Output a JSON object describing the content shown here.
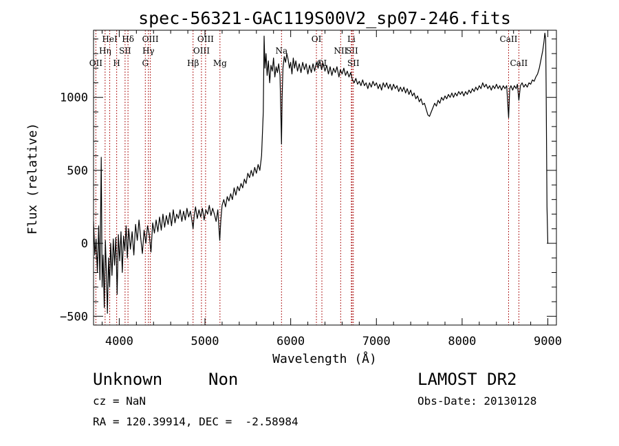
{
  "chart_data": {
    "type": "line",
    "title": "spec-56321-GAC119S00V2_sp07-246.fits",
    "xlabel": "Wavelength (Å)",
    "ylabel": "Flux (relative)",
    "xlim": [
      3700,
      9100
    ],
    "ylim": [
      -560,
      1460
    ],
    "grid": false,
    "x_ticks": [
      4000,
      5000,
      6000,
      7000,
      8000,
      9000
    ],
    "y_ticks": [
      -500,
      0,
      500,
      1000
    ],
    "line_color": "#000000",
    "marker_color": "#b22222",
    "series": [
      {
        "points": [
          [
            3700,
            150
          ],
          [
            3715,
            -80
          ],
          [
            3730,
            30
          ],
          [
            3745,
            -200
          ],
          [
            3760,
            120
          ],
          [
            3775,
            -250
          ],
          [
            3790,
            590
          ],
          [
            3800,
            -300
          ],
          [
            3812,
            -80
          ],
          [
            3825,
            -440
          ],
          [
            3838,
            20
          ],
          [
            3850,
            -200
          ],
          [
            3862,
            -480
          ],
          [
            3875,
            -100
          ],
          [
            3888,
            -300
          ],
          [
            3900,
            0
          ],
          [
            3915,
            -220
          ],
          [
            3930,
            30
          ],
          [
            3945,
            -150
          ],
          [
            3960,
            40
          ],
          [
            3975,
            -350
          ],
          [
            3990,
            60
          ],
          [
            4005,
            -120
          ],
          [
            4020,
            80
          ],
          [
            4035,
            -200
          ],
          [
            4050,
            50
          ],
          [
            4065,
            -50
          ],
          [
            4080,
            120
          ],
          [
            4095,
            -100
          ],
          [
            4110,
            100
          ],
          [
            4130,
            -40
          ],
          [
            4150,
            80
          ],
          [
            4170,
            -80
          ],
          [
            4190,
            130
          ],
          [
            4210,
            20
          ],
          [
            4230,
            160
          ],
          [
            4250,
            40
          ],
          [
            4270,
            -70
          ],
          [
            4290,
            90
          ],
          [
            4310,
            0
          ],
          [
            4330,
            120
          ],
          [
            4350,
            60
          ],
          [
            4370,
            -60
          ],
          [
            4390,
            140
          ],
          [
            4410,
            70
          ],
          [
            4430,
            160
          ],
          [
            4450,
            80
          ],
          [
            4470,
            180
          ],
          [
            4490,
            90
          ],
          [
            4510,
            200
          ],
          [
            4530,
            110
          ],
          [
            4550,
            190
          ],
          [
            4570,
            130
          ],
          [
            4590,
            210
          ],
          [
            4610,
            120
          ],
          [
            4630,
            230
          ],
          [
            4650,
            140
          ],
          [
            4670,
            200
          ],
          [
            4690,
            170
          ],
          [
            4710,
            230
          ],
          [
            4730,
            150
          ],
          [
            4750,
            220
          ],
          [
            4770,
            160
          ],
          [
            4790,
            240
          ],
          [
            4810,
            180
          ],
          [
            4830,
            220
          ],
          [
            4850,
            150
          ],
          [
            4861,
            100
          ],
          [
            4875,
            190
          ],
          [
            4890,
            250
          ],
          [
            4910,
            170
          ],
          [
            4930,
            230
          ],
          [
            4950,
            180
          ],
          [
            4970,
            240
          ],
          [
            4990,
            160
          ],
          [
            5010,
            230
          ],
          [
            5030,
            200
          ],
          [
            5050,
            260
          ],
          [
            5070,
            190
          ],
          [
            5090,
            240
          ],
          [
            5110,
            200
          ],
          [
            5130,
            150
          ],
          [
            5150,
            230
          ],
          [
            5172,
            20
          ],
          [
            5185,
            160
          ],
          [
            5200,
            260
          ],
          [
            5220,
            300
          ],
          [
            5240,
            250
          ],
          [
            5260,
            320
          ],
          [
            5280,
            290
          ],
          [
            5300,
            340
          ],
          [
            5320,
            300
          ],
          [
            5340,
            380
          ],
          [
            5360,
            330
          ],
          [
            5380,
            390
          ],
          [
            5400,
            360
          ],
          [
            5420,
            410
          ],
          [
            5440,
            380
          ],
          [
            5460,
            440
          ],
          [
            5480,
            410
          ],
          [
            5500,
            480
          ],
          [
            5520,
            450
          ],
          [
            5540,
            500
          ],
          [
            5560,
            460
          ],
          [
            5580,
            520
          ],
          [
            5600,
            480
          ],
          [
            5620,
            540
          ],
          [
            5640,
            500
          ],
          [
            5660,
            600
          ],
          [
            5680,
            900
          ],
          [
            5690,
            1420
          ],
          [
            5700,
            1200
          ],
          [
            5712,
            1300
          ],
          [
            5725,
            1150
          ],
          [
            5740,
            1250
          ],
          [
            5755,
            1100
          ],
          [
            5770,
            1220
          ],
          [
            5785,
            1180
          ],
          [
            5800,
            1270
          ],
          [
            5815,
            1140
          ],
          [
            5830,
            1210
          ],
          [
            5845,
            1170
          ],
          [
            5860,
            1230
          ],
          [
            5875,
            1150
          ],
          [
            5885,
            900
          ],
          [
            5893,
            680
          ],
          [
            5900,
            1000
          ],
          [
            5910,
            1200
          ],
          [
            5925,
            1280
          ],
          [
            5940,
            1240
          ],
          [
            5955,
            1300
          ],
          [
            5970,
            1260
          ],
          [
            5985,
            1200
          ],
          [
            6000,
            1240
          ],
          [
            6015,
            1160
          ],
          [
            6030,
            1270
          ],
          [
            6045,
            1200
          ],
          [
            6060,
            1250
          ],
          [
            6080,
            1180
          ],
          [
            6100,
            1230
          ],
          [
            6120,
            1170
          ],
          [
            6140,
            1240
          ],
          [
            6160,
            1190
          ],
          [
            6180,
            1230
          ],
          [
            6200,
            1160
          ],
          [
            6220,
            1220
          ],
          [
            6240,
            1170
          ],
          [
            6260,
            1230
          ],
          [
            6280,
            1180
          ],
          [
            6300,
            1240
          ],
          [
            6320,
            1200
          ],
          [
            6340,
            1250
          ],
          [
            6360,
            1190
          ],
          [
            6380,
            1230
          ],
          [
            6400,
            1180
          ],
          [
            6420,
            1220
          ],
          [
            6440,
            1160
          ],
          [
            6460,
            1210
          ],
          [
            6480,
            1150
          ],
          [
            6500,
            1200
          ],
          [
            6520,
            1170
          ],
          [
            6540,
            1210
          ],
          [
            6563,
            1140
          ],
          [
            6580,
            1190
          ],
          [
            6600,
            1160
          ],
          [
            6620,
            1200
          ],
          [
            6640,
            1150
          ],
          [
            6660,
            1180
          ],
          [
            6680,
            1140
          ],
          [
            6700,
            1170
          ],
          [
            6720,
            1120
          ],
          [
            6740,
            1100
          ],
          [
            6760,
            1130
          ],
          [
            6780,
            1090
          ],
          [
            6800,
            1110
          ],
          [
            6820,
            1080
          ],
          [
            6840,
            1120
          ],
          [
            6860,
            1080
          ],
          [
            6880,
            1100
          ],
          [
            6900,
            1060
          ],
          [
            6920,
            1100
          ],
          [
            6940,
            1070
          ],
          [
            6960,
            1110
          ],
          [
            6980,
            1080
          ],
          [
            7000,
            1100
          ],
          [
            7020,
            1060
          ],
          [
            7040,
            1090
          ],
          [
            7060,
            1050
          ],
          [
            7080,
            1100
          ],
          [
            7100,
            1070
          ],
          [
            7120,
            1100
          ],
          [
            7140,
            1060
          ],
          [
            7160,
            1090
          ],
          [
            7180,
            1050
          ],
          [
            7200,
            1090
          ],
          [
            7220,
            1060
          ],
          [
            7240,
            1080
          ],
          [
            7260,
            1040
          ],
          [
            7280,
            1070
          ],
          [
            7300,
            1040
          ],
          [
            7320,
            1070
          ],
          [
            7340,
            1030
          ],
          [
            7360,
            1060
          ],
          [
            7380,
            1020
          ],
          [
            7400,
            1050
          ],
          [
            7420,
            1010
          ],
          [
            7440,
            1030
          ],
          [
            7460,
            990
          ],
          [
            7480,
            1010
          ],
          [
            7500,
            970
          ],
          [
            7520,
            990
          ],
          [
            7540,
            950
          ],
          [
            7560,
            960
          ],
          [
            7580,
            920
          ],
          [
            7600,
            880
          ],
          [
            7620,
            870
          ],
          [
            7640,
            900
          ],
          [
            7660,
            930
          ],
          [
            7680,
            960
          ],
          [
            7700,
            940
          ],
          [
            7720,
            980
          ],
          [
            7740,
            960
          ],
          [
            7760,
            1000
          ],
          [
            7780,
            980
          ],
          [
            7800,
            1010
          ],
          [
            7820,
            990
          ],
          [
            7840,
            1020
          ],
          [
            7860,
            1000
          ],
          [
            7880,
            1030
          ],
          [
            7900,
            1000
          ],
          [
            7920,
            1030
          ],
          [
            7940,
            1010
          ],
          [
            7960,
            1040
          ],
          [
            7980,
            1020
          ],
          [
            8000,
            1040
          ],
          [
            8020,
            1010
          ],
          [
            8040,
            1040
          ],
          [
            8060,
            1020
          ],
          [
            8080,
            1050
          ],
          [
            8100,
            1030
          ],
          [
            8120,
            1060
          ],
          [
            8140,
            1040
          ],
          [
            8160,
            1070
          ],
          [
            8180,
            1050
          ],
          [
            8200,
            1080
          ],
          [
            8220,
            1060
          ],
          [
            8240,
            1100
          ],
          [
            8260,
            1070
          ],
          [
            8280,
            1090
          ],
          [
            8300,
            1060
          ],
          [
            8320,
            1080
          ],
          [
            8340,
            1050
          ],
          [
            8360,
            1080
          ],
          [
            8380,
            1060
          ],
          [
            8400,
            1090
          ],
          [
            8420,
            1060
          ],
          [
            8440,
            1080
          ],
          [
            8460,
            1050
          ],
          [
            8480,
            1080
          ],
          [
            8500,
            1060
          ],
          [
            8520,
            1080
          ],
          [
            8542,
            860
          ],
          [
            8555,
            1060
          ],
          [
            8570,
            1080
          ],
          [
            8590,
            1050
          ],
          [
            8610,
            1080
          ],
          [
            8630,
            1060
          ],
          [
            8645,
            1090
          ],
          [
            8662,
            980
          ],
          [
            8680,
            1080
          ],
          [
            8700,
            1100
          ],
          [
            8720,
            1070
          ],
          [
            8740,
            1090
          ],
          [
            8760,
            1070
          ],
          [
            8780,
            1100
          ],
          [
            8800,
            1090
          ],
          [
            8820,
            1120
          ],
          [
            8840,
            1110
          ],
          [
            8860,
            1140
          ],
          [
            8880,
            1160
          ],
          [
            8900,
            1200
          ],
          [
            8920,
            1260
          ],
          [
            8940,
            1320
          ],
          [
            8955,
            1380
          ],
          [
            8965,
            1440
          ],
          [
            8975,
            1400
          ],
          [
            8980,
            1100
          ],
          [
            8990,
            250
          ],
          [
            9000,
            0
          ]
        ]
      }
    ],
    "lines": [
      {
        "label": "OII",
        "x": 3727,
        "row": 3
      },
      {
        "label": "Hη",
        "x": 3835,
        "row": 2
      },
      {
        "label": "HeI",
        "x": 3889,
        "row": 1
      },
      {
        "label": "H",
        "x": 3970,
        "row": 3
      },
      {
        "label": "SII",
        "x": 4068,
        "row": 2
      },
      {
        "label": "Hδ",
        "x": 4102,
        "row": 1
      },
      {
        "label": "G",
        "x": 4304,
        "row": 3
      },
      {
        "label": "Hγ",
        "x": 4340,
        "row": 2
      },
      {
        "label": "OIII",
        "x": 4363,
        "row": 1
      },
      {
        "label": "Hβ",
        "x": 4861,
        "row": 3
      },
      {
        "label": "OIII",
        "x": 4959,
        "row": 2
      },
      {
        "label": "OIII",
        "x": 5007,
        "row": 1
      },
      {
        "label": "Mg",
        "x": 5175,
        "row": 3
      },
      {
        "label": "Na",
        "x": 5893,
        "row": 2
      },
      {
        "label": "OI",
        "x": 6300,
        "row": 1
      },
      {
        "label": "OI",
        "x": 6364,
        "row": 3
      },
      {
        "label": "NII",
        "x": 6583,
        "row": 2
      },
      {
        "label": "Li",
        "x": 6708,
        "row": 1
      },
      {
        "label": "SII",
        "x": 6716,
        "row": 2
      },
      {
        "label": "SII",
        "x": 6731,
        "row": 3
      },
      {
        "label": "CaII",
        "x": 8542,
        "row": 1
      },
      {
        "label": "CaII",
        "x": 8662,
        "row": 3
      }
    ]
  },
  "info": {
    "class": "Unknown",
    "subclass": "Non",
    "cz": "cz = NaN",
    "coords": "RA = 120.39914, DEC =  -2.58984",
    "survey": "LAMOST DR2",
    "obsdate": "Obs-Date: 20130128"
  }
}
